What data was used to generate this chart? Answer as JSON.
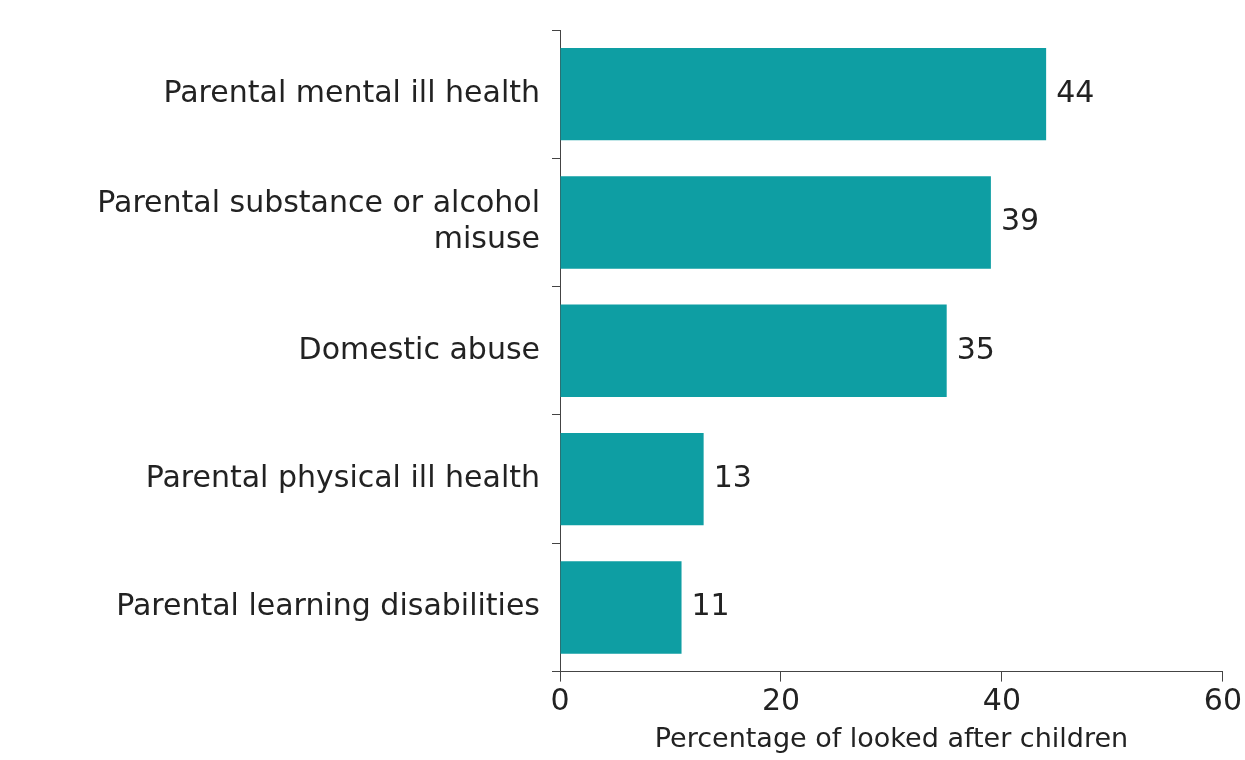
{
  "chart_data": {
    "type": "bar",
    "orientation": "horizontal",
    "xlabel": "Percentage of looked after children",
    "categories": [
      "Parental mental ill health",
      "Parental substance or alcohol misuse",
      "Domestic abuse",
      "Parental physical ill health",
      "Parental learning disabilities"
    ],
    "values": [
      44,
      39,
      35,
      13,
      11
    ],
    "color": "#0e9ea3",
    "xlim": [
      0,
      60
    ],
    "xticks": [
      0,
      20,
      40,
      60
    ],
    "grid": false,
    "legend": false,
    "data_labels": true
  }
}
